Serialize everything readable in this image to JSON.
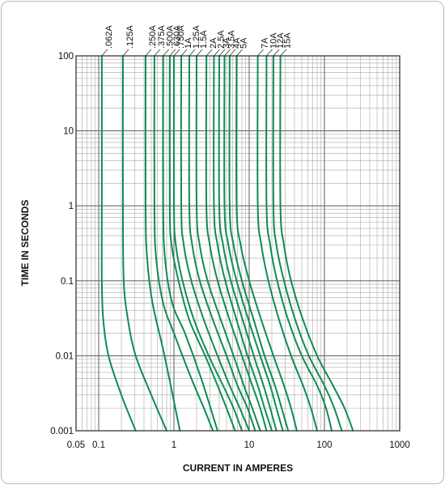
{
  "chart_data": {
    "type": "line",
    "xlabel": "CURRENT IN AMPERES",
    "ylabel": "TIME IN SECONDS",
    "x_scale": "log",
    "y_scale": "log",
    "xlim": [
      0.05,
      1000
    ],
    "ylim": [
      0.001,
      100
    ],
    "grid": true,
    "line_color": "#0f8c52",
    "x_ticks": [
      {
        "value": 0.05,
        "label": "0.05"
      },
      {
        "value": 0.1,
        "label": "0.1"
      },
      {
        "value": 1,
        "label": "1"
      },
      {
        "value": 10,
        "label": "10"
      },
      {
        "value": 100,
        "label": "100"
      },
      {
        "value": 1000,
        "label": "1000"
      }
    ],
    "y_ticks": [
      {
        "value": 100,
        "label": "100"
      },
      {
        "value": 10,
        "label": "10"
      },
      {
        "value": 1,
        "label": "1"
      },
      {
        "value": 0.1,
        "label": "0.1"
      },
      {
        "value": 0.01,
        "label": "0.01"
      },
      {
        "value": 0.001,
        "label": "0.001"
      }
    ],
    "series": [
      {
        "name": ".062A",
        "points": [
          [
            0.11,
            100
          ],
          [
            0.11,
            1
          ],
          [
            0.11,
            0.1
          ],
          [
            0.115,
            0.03
          ],
          [
            0.135,
            0.01
          ],
          [
            0.2,
            0.003
          ],
          [
            0.31,
            0.001
          ]
        ]
      },
      {
        "name": ".125A",
        "points": [
          [
            0.21,
            100
          ],
          [
            0.21,
            1
          ],
          [
            0.215,
            0.1
          ],
          [
            0.245,
            0.03
          ],
          [
            0.31,
            0.01
          ],
          [
            0.5,
            0.003
          ],
          [
            0.8,
            0.001
          ]
        ]
      },
      {
        "name": ".250A",
        "points": [
          [
            0.42,
            100
          ],
          [
            0.42,
            1
          ],
          [
            0.44,
            0.2
          ],
          [
            0.52,
            0.05
          ],
          [
            0.75,
            0.01
          ],
          [
            1.2,
            0.001
          ]
        ]
      },
      {
        "name": ".375A",
        "points": [
          [
            0.55,
            100
          ],
          [
            0.55,
            1
          ],
          [
            0.58,
            0.2
          ],
          [
            0.72,
            0.05
          ],
          [
            1.0,
            0.02
          ],
          [
            1.7,
            0.005
          ],
          [
            2.5,
            0.002
          ],
          [
            3.3,
            0.001
          ]
        ]
      },
      {
        "name": ".500A",
        "points": [
          [
            0.72,
            100
          ],
          [
            0.72,
            1
          ],
          [
            0.76,
            0.2
          ],
          [
            0.95,
            0.05
          ],
          [
            1.4,
            0.02
          ],
          [
            2.3,
            0.005
          ],
          [
            3.8,
            0.001
          ]
        ]
      },
      {
        "name": ".630A",
        "points": [
          [
            0.88,
            100
          ],
          [
            0.88,
            1
          ],
          [
            0.93,
            0.3
          ],
          [
            1.15,
            0.1
          ],
          [
            1.6,
            0.03
          ],
          [
            2.6,
            0.01
          ],
          [
            3.8,
            0.004
          ],
          [
            5.0,
            0.002
          ],
          [
            6.5,
            0.001
          ]
        ]
      },
      {
        "name": ".750A",
        "points": [
          [
            1.0,
            100
          ],
          [
            1.0,
            1
          ],
          [
            1.06,
            0.3
          ],
          [
            1.3,
            0.1
          ],
          [
            1.85,
            0.03
          ],
          [
            2.9,
            0.01
          ],
          [
            4.5,
            0.004
          ],
          [
            6.2,
            0.002
          ],
          [
            8.0,
            0.001
          ]
        ]
      },
      {
        "name": "1A",
        "points": [
          [
            1.25,
            100
          ],
          [
            1.25,
            1
          ],
          [
            1.35,
            0.3
          ],
          [
            1.7,
            0.1
          ],
          [
            2.5,
            0.03
          ],
          [
            3.8,
            0.01
          ],
          [
            5.5,
            0.004
          ],
          [
            7.5,
            0.002
          ],
          [
            10,
            0.001
          ]
        ]
      },
      {
        "name": "1.25A",
        "points": [
          [
            1.6,
            100
          ],
          [
            1.6,
            1
          ],
          [
            1.75,
            0.3
          ],
          [
            2.2,
            0.1
          ],
          [
            3.3,
            0.03
          ],
          [
            5.0,
            0.01
          ],
          [
            7.0,
            0.004
          ],
          [
            9.5,
            0.002
          ],
          [
            12,
            0.001
          ]
        ]
      },
      {
        "name": "1.5A",
        "points": [
          [
            2.0,
            100
          ],
          [
            2.0,
            1
          ],
          [
            2.2,
            0.3
          ],
          [
            2.8,
            0.1
          ],
          [
            4.2,
            0.03
          ],
          [
            6.2,
            0.01
          ],
          [
            8.5,
            0.004
          ],
          [
            11,
            0.002
          ],
          [
            14,
            0.001
          ]
        ]
      },
      {
        "name": "2A",
        "points": [
          [
            2.7,
            100
          ],
          [
            2.7,
            1
          ],
          [
            3.0,
            0.3
          ],
          [
            3.8,
            0.1
          ],
          [
            5.5,
            0.03
          ],
          [
            8.0,
            0.01
          ],
          [
            11,
            0.004
          ],
          [
            14,
            0.002
          ],
          [
            17,
            0.001
          ]
        ]
      },
      {
        "name": "2.5A",
        "points": [
          [
            3.4,
            100
          ],
          [
            3.4,
            1
          ],
          [
            3.8,
            0.3
          ],
          [
            4.8,
            0.1
          ],
          [
            6.8,
            0.03
          ],
          [
            9.5,
            0.01
          ],
          [
            13,
            0.004
          ],
          [
            16,
            0.002
          ],
          [
            20,
            0.001
          ]
        ]
      },
      {
        "name": "3A",
        "points": [
          [
            4.0,
            100
          ],
          [
            4.0,
            1
          ],
          [
            4.5,
            0.3
          ],
          [
            5.7,
            0.1
          ],
          [
            8.2,
            0.03
          ],
          [
            11.5,
            0.01
          ],
          [
            15.5,
            0.004
          ],
          [
            19,
            0.002
          ],
          [
            23,
            0.001
          ]
        ]
      },
      {
        "name": "3.5A",
        "points": [
          [
            4.7,
            100
          ],
          [
            4.7,
            1
          ],
          [
            5.3,
            0.3
          ],
          [
            6.8,
            0.1
          ],
          [
            9.8,
            0.03
          ],
          [
            14,
            0.01
          ],
          [
            19,
            0.004
          ],
          [
            23,
            0.002
          ],
          [
            28,
            0.001
          ]
        ]
      },
      {
        "name": "4A",
        "points": [
          [
            5.5,
            100
          ],
          [
            5.5,
            1
          ],
          [
            6.2,
            0.3
          ],
          [
            8.0,
            0.1
          ],
          [
            11.5,
            0.03
          ],
          [
            16,
            0.01
          ],
          [
            22,
            0.004
          ],
          [
            27,
            0.002
          ],
          [
            33,
            0.001
          ]
        ]
      },
      {
        "name": "5A",
        "points": [
          [
            6.8,
            100
          ],
          [
            6.8,
            1
          ],
          [
            7.7,
            0.3
          ],
          [
            10,
            0.1
          ],
          [
            14.5,
            0.03
          ],
          [
            21,
            0.01
          ],
          [
            29,
            0.004
          ],
          [
            36,
            0.002
          ],
          [
            43,
            0.001
          ]
        ]
      },
      {
        "name": "7A",
        "points": [
          [
            13,
            100
          ],
          [
            13,
            1
          ],
          [
            14.5,
            0.3
          ],
          [
            18,
            0.1
          ],
          [
            25,
            0.03
          ],
          [
            36,
            0.01
          ],
          [
            52,
            0.004
          ],
          [
            66,
            0.002
          ],
          [
            80,
            0.001
          ]
        ]
      },
      {
        "name": "10A",
        "points": [
          [
            17,
            100
          ],
          [
            17,
            1
          ],
          [
            19,
            0.3
          ],
          [
            23.5,
            0.1
          ],
          [
            33,
            0.03
          ],
          [
            50,
            0.01
          ],
          [
            80,
            0.004
          ],
          [
            105,
            0.002
          ],
          [
            125,
            0.001
          ]
        ]
      },
      {
        "name": "12A",
        "points": [
          [
            21,
            100
          ],
          [
            21,
            1
          ],
          [
            23,
            0.3
          ],
          [
            29,
            0.1
          ],
          [
            41,
            0.03
          ],
          [
            62,
            0.01
          ],
          [
            100,
            0.004
          ],
          [
            135,
            0.002
          ],
          [
            170,
            0.001
          ]
        ]
      },
      {
        "name": "15A",
        "points": [
          [
            26,
            100
          ],
          [
            26,
            1
          ],
          [
            29,
            0.3
          ],
          [
            36,
            0.1
          ],
          [
            52,
            0.03
          ],
          [
            80,
            0.01
          ],
          [
            130,
            0.004
          ],
          [
            185,
            0.002
          ],
          [
            240,
            0.001
          ]
        ]
      }
    ]
  }
}
